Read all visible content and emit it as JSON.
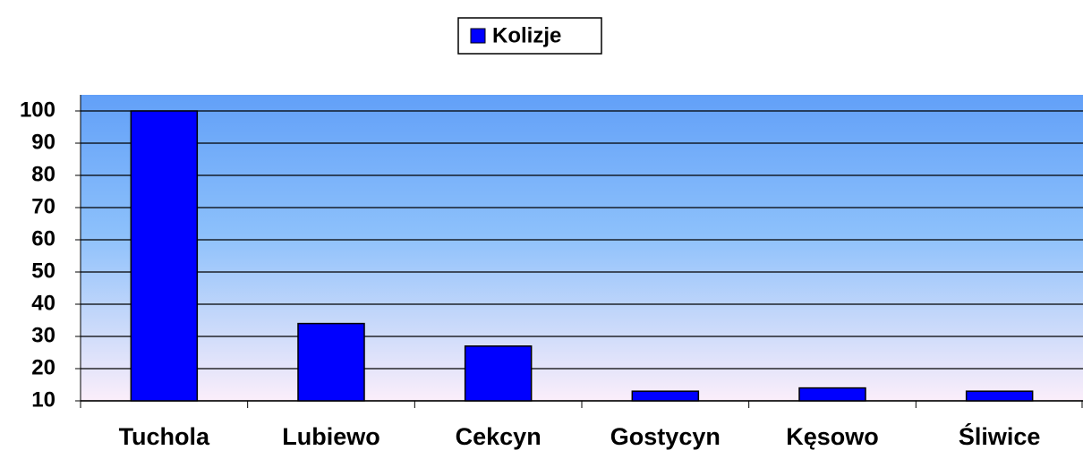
{
  "chart_data": {
    "type": "bar",
    "categories": [
      "Tuchola",
      "Lubiewo",
      "Cekcyn",
      "Gostycyn",
      "Kęsowo",
      "Śliwice"
    ],
    "series": [
      {
        "name": "Kolizje",
        "color": "#0000ff",
        "values": [
          100,
          34,
          27,
          13,
          14,
          13
        ]
      }
    ],
    "ylim": [
      10,
      105
    ],
    "yticks": [
      10,
      20,
      30,
      40,
      50,
      60,
      70,
      80,
      90,
      100
    ],
    "grid": true,
    "legend": "top"
  }
}
